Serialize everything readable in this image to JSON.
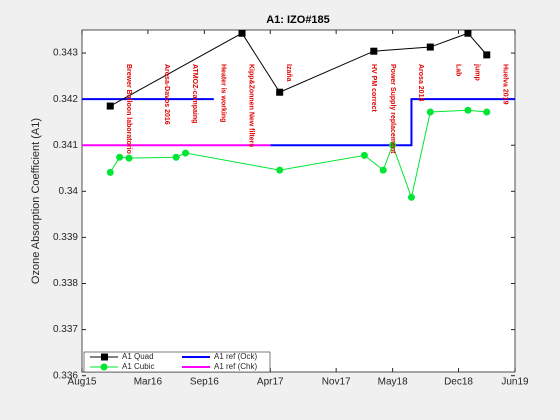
{
  "chart_data": {
    "type": "line",
    "title": "A1: IZO#185",
    "ylabel": "Ozone Absorption Coefficient (A1)",
    "xlim": [
      "2015-08",
      "2019-06"
    ],
    "xticks": [
      {
        "value": "2015-08",
        "label": "Aug15"
      },
      {
        "value": "2016-03",
        "label": "Mar16"
      },
      {
        "value": "2016-09",
        "label": "Sep16"
      },
      {
        "value": "2017-04",
        "label": "Apr17"
      },
      {
        "value": "2017-11",
        "label": "Nov17"
      },
      {
        "value": "2018-05",
        "label": "May18"
      },
      {
        "value": "2018-12",
        "label": "Dec18"
      },
      {
        "value": "2019-06",
        "label": "Jun19"
      }
    ],
    "ylim": [
      0.33608,
      0.3435
    ],
    "yticks": [
      0.336,
      0.337,
      0.338,
      0.339,
      0.34,
      0.341,
      0.342,
      0.343
    ],
    "series": [
      {
        "name": "A1 Quad",
        "color": "#000000",
        "marker": "square",
        "x": [
          "2015-11",
          "2017-01",
          "2017-05",
          "2018-03",
          "2018-09",
          "2019-01",
          "2019-03"
        ],
        "values": [
          0.34185,
          0.34343,
          0.34215,
          0.34304,
          0.34313,
          0.34343,
          0.34296
        ]
      },
      {
        "name": "A1 Cubic",
        "color": "#00e633",
        "marker": "circle",
        "x": [
          "2015-11",
          "2015-12",
          "2016-01",
          "2016-06",
          "2016-07",
          "2017-05",
          "2018-02",
          "2018-04",
          "2018-05",
          "2018-07",
          "2018-09",
          "2019-01",
          "2019-03"
        ],
        "values": [
          0.34041,
          0.34074,
          0.34072,
          0.34074,
          0.34083,
          0.34046,
          0.34078,
          0.34046,
          0.341,
          0.33987,
          0.34172,
          0.34176,
          0.34172
        ]
      },
      {
        "name": "A1 ref (Ock)",
        "color": "#0000ff",
        "marker": "none",
        "x": [
          "2015-08",
          "2016-10",
          "2016-11",
          "2017-04",
          "2018-07",
          "2018-07",
          "2019-06"
        ],
        "values": [
          0.342,
          0.342,
          null,
          0.341,
          0.341,
          0.342,
          0.342
        ]
      },
      {
        "name": "A1 ref (Chk)",
        "color": "#ff00ff",
        "marker": "none",
        "x": [
          "2015-08",
          "2017-04"
        ],
        "values": [
          0.341,
          0.341
        ]
      }
    ],
    "annotations": [
      {
        "text": "Brewer Balloon laboratorio",
        "x": "2016-01"
      },
      {
        "text": "Arosa-Davos 2016",
        "x": "2016-05"
      },
      {
        "text": "ATMOZ-campaing",
        "x": "2016-08"
      },
      {
        "text": "Heater is working",
        "x": "2016-11"
      },
      {
        "text": "Kipp&Zonnen New filters",
        "x": "2017-02"
      },
      {
        "text": "Izaña",
        "x": "2017-06"
      },
      {
        "text": "HV PM correct",
        "x": "2018-03"
      },
      {
        "text": "Power Supply replacement",
        "x": "2018-05"
      },
      {
        "text": "Arosa 2018",
        "x": "2018-08"
      },
      {
        "text": "Lab",
        "x": "2018-12"
      },
      {
        "text": "jump",
        "x": "2019-02"
      },
      {
        "text": "Huelva 2019",
        "x": "2019-05"
      }
    ]
  }
}
